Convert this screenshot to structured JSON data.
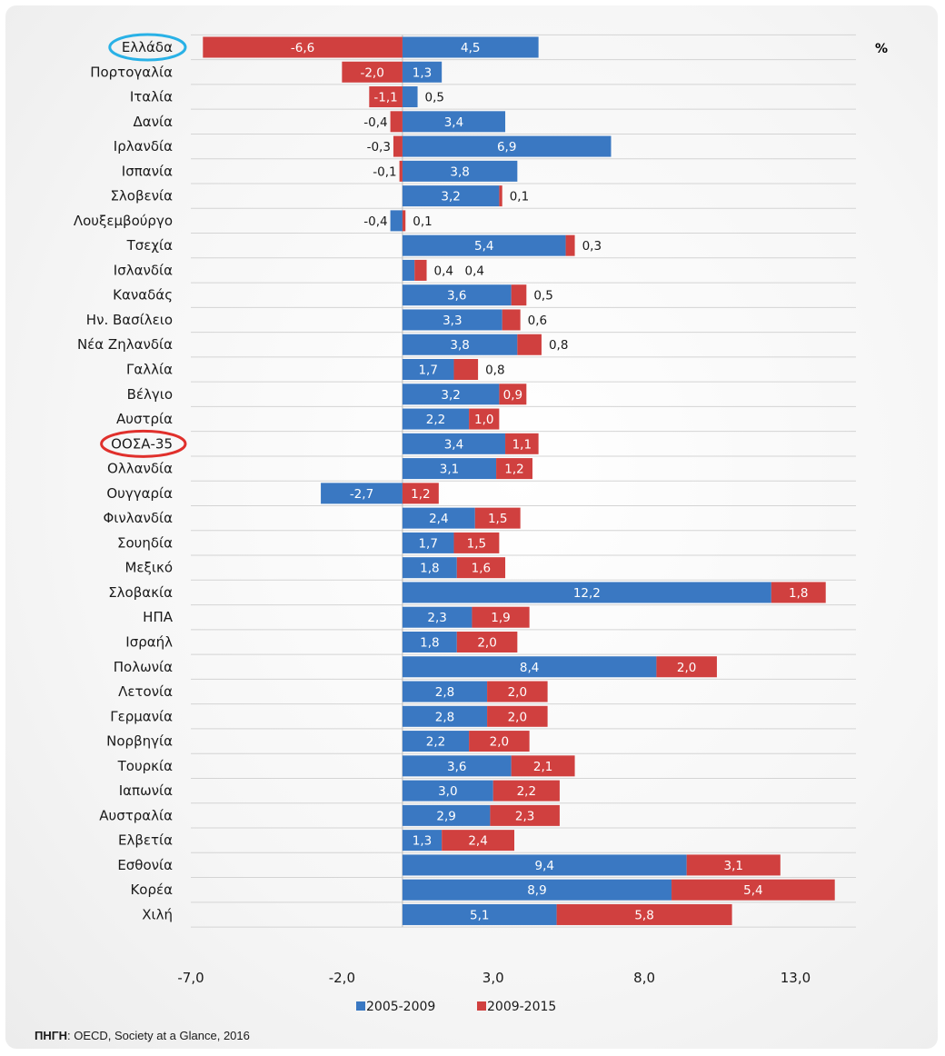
{
  "chart_data": {
    "type": "bar",
    "orientation": "horizontal",
    "stacked": true,
    "unit_label": "%",
    "categories": [
      "Ελλάδα",
      "Πορτογαλία",
      "Ιταλία",
      "Δανία",
      "Ιρλανδία",
      "Ισπανία",
      "Σλοβενία",
      "Λουξεμβούργο",
      "Τσεχία",
      "Ισλανδία",
      "Καναδάς",
      "Ην. Βασίλειο",
      "Νέα Ζηλανδία",
      "Γαλλία",
      "Βέλγιο",
      "Αυστρία",
      "ΟΟΣΑ-35",
      "Ολλανδία",
      "Ουγγαρία",
      "Φινλανδία",
      "Σουηδία",
      "Μεξικό",
      "Σλοβακία",
      "ΗΠΑ",
      "Ισραήλ",
      "Πολωνία",
      "Λετονία",
      "Γερμανία",
      "Νορβηγία",
      "Τουρκία",
      "Ιαπωνία",
      "Αυστραλία",
      "Ελβετία",
      "Εσθονία",
      "Κορέα",
      "Χιλή"
    ],
    "series": [
      {
        "name": "2005-2009",
        "color": "#3a78c2",
        "values": [
          4.5,
          1.3,
          0.5,
          3.4,
          6.9,
          3.8,
          3.2,
          -0.4,
          5.4,
          0.4,
          3.6,
          3.3,
          3.8,
          1.7,
          3.2,
          2.2,
          3.4,
          3.1,
          -2.7,
          2.4,
          1.7,
          1.8,
          12.2,
          2.3,
          1.8,
          8.4,
          2.8,
          2.8,
          2.2,
          3.6,
          3.0,
          2.9,
          1.3,
          9.4,
          8.9,
          5.1
        ]
      },
      {
        "name": "2009-2015",
        "color": "#d0403f",
        "values": [
          -6.6,
          -2.0,
          -1.1,
          -0.4,
          -0.3,
          -0.1,
          0.1,
          0.1,
          0.3,
          0.4,
          0.5,
          0.6,
          0.8,
          0.8,
          0.9,
          1.0,
          1.1,
          1.2,
          1.2,
          1.5,
          1.5,
          1.6,
          1.8,
          1.9,
          2.0,
          2.0,
          2.0,
          2.0,
          2.0,
          2.1,
          2.2,
          2.3,
          2.4,
          3.1,
          5.4,
          5.8
        ]
      }
    ],
    "display_values": {
      "2005-2009": [
        "4,5",
        "1,3",
        "0,5",
        "3,4",
        "6,9",
        "3,8",
        "3,2",
        "-0,4",
        "5,4",
        "0,4",
        "3,6",
        "3,3",
        "3,8",
        "1,7",
        "3,2",
        "2,2",
        "3,4",
        "3,1",
        "-2,7",
        "2,4",
        "1,7",
        "1,8",
        "12,2",
        "2,3",
        "1,8",
        "8,4",
        "2,8",
        "2,8",
        "2,2",
        "3,6",
        "3,0",
        "2,9",
        "1,3",
        "9,4",
        "8,9",
        "5,1"
      ],
      "2009-2015": [
        "-6,6",
        "-2,0",
        "-1,1",
        "-0,4",
        "-0,3",
        "-0,1",
        "0,1",
        "0,1",
        "0,3",
        "0,4",
        "0,5",
        "0,6",
        "0,8",
        "0,8",
        "0,9",
        "1,0",
        "1,1",
        "1,2",
        "1,2",
        "1,5",
        "1,5",
        "1,6",
        "1,8",
        "1,9",
        "2,0",
        "2,0",
        "2,0",
        "2,0",
        "2,0",
        "2,1",
        "2,2",
        "2,3",
        "2,4",
        "3,1",
        "5,4",
        "5,8"
      ]
    },
    "xlim": [
      -7.0,
      15.0
    ],
    "x_ticks": [
      -7.0,
      -2.0,
      3.0,
      8.0,
      13.0
    ],
    "x_tick_labels": [
      "-7,0",
      "-2,0",
      "3,0",
      "8,0",
      "13,0"
    ],
    "grid": true,
    "legend_position": "bottom",
    "highlighted_categories": [
      {
        "category": "Ελλάδα",
        "color": "#29b1e6"
      },
      {
        "category": "ΟΟΣΑ-35",
        "color": "#e0302c"
      }
    ]
  },
  "source": {
    "label": "ΠΗΓΗ",
    "text": ": OECD, Society at a Glance, 2016"
  }
}
